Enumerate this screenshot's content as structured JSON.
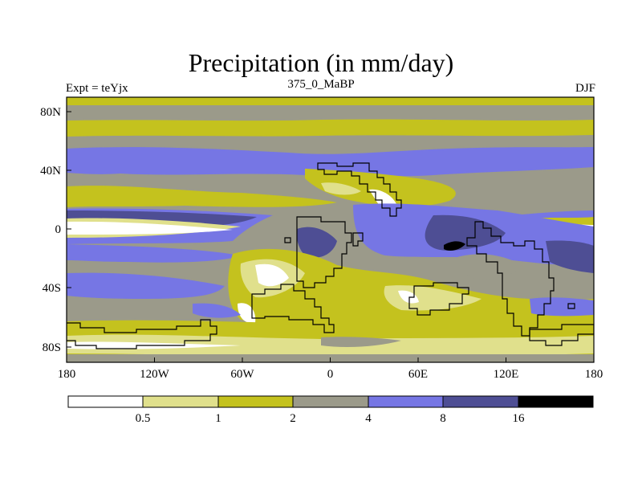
{
  "title": "Precipitation (in mm/day)",
  "experiment_label": "Expt = teYjx",
  "time_label": "375_0_MaBP",
  "season_label": "DJF",
  "x_ticks": [
    "180",
    "120W",
    "60W",
    "0",
    "60E",
    "120E",
    "180"
  ],
  "y_ticks": [
    "80N",
    "40N",
    "0",
    "40S",
    "80S"
  ],
  "colorbar": {
    "labels": [
      "0.5",
      "1",
      "2",
      "4",
      "8",
      "16"
    ],
    "colors": [
      "#ffffff",
      "#e0e08c",
      "#c4c21e",
      "#9b9a8a",
      "#7676e4",
      "#4e4e94",
      "#000000"
    ]
  }
}
